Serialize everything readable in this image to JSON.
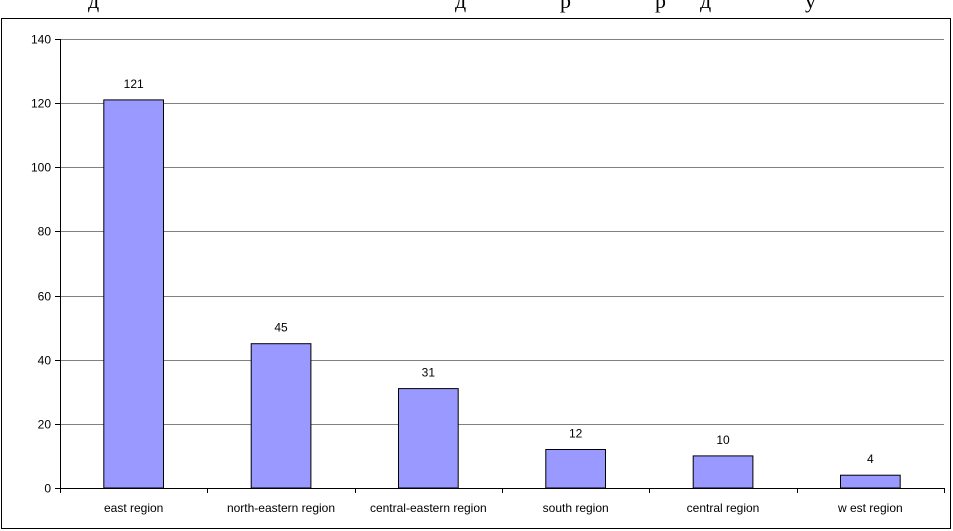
{
  "chart_data": {
    "type": "bar",
    "categories": [
      "east region",
      "north-eastern region",
      "central-eastern region",
      "south region",
      "central region",
      "w est region"
    ],
    "values": [
      121,
      45,
      31,
      12,
      10,
      4
    ],
    "data_labels": [
      "121",
      "45",
      "31",
      "12",
      "10",
      "4"
    ],
    "title": "",
    "xlabel": "",
    "ylabel": "",
    "ylim": [
      0,
      140
    ],
    "yticks": [
      0,
      20,
      40,
      60,
      80,
      100,
      120,
      140
    ],
    "grid": true,
    "legend": "none",
    "bar_color": "#9999FF",
    "bar_stroke": "#000000",
    "grid_color": "#808080"
  }
}
